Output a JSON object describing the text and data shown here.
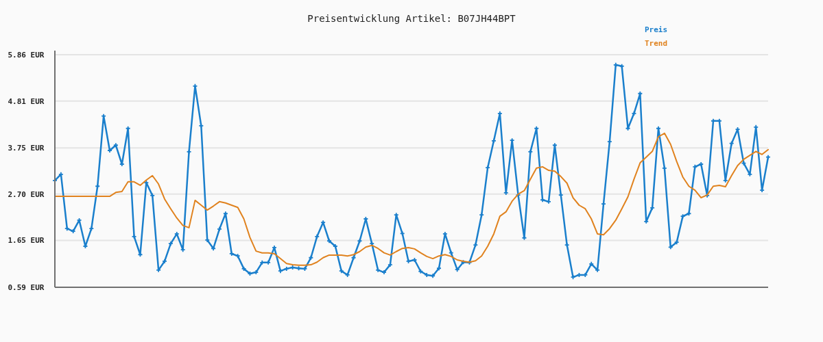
{
  "chart_data": {
    "type": "line",
    "title": "Preisentwicklung Artikel: B07JH44BPT",
    "categories": [
      null,
      null,
      null,
      null,
      null,
      null,
      null,
      null,
      null,
      null,
      null,
      null,
      null,
      null,
      null,
      null,
      null,
      null,
      null,
      null,
      null,
      null,
      null,
      null,
      null,
      null,
      null,
      null,
      null,
      null,
      null,
      null,
      null,
      null,
      null,
      null,
      null,
      null,
      null,
      null,
      null,
      null,
      null,
      null,
      null,
      null,
      null,
      null,
      null,
      null,
      null,
      null,
      null,
      null,
      null,
      null,
      null,
      null,
      null,
      null,
      null,
      null,
      null,
      null,
      null,
      null,
      null,
      null,
      null,
      null,
      null,
      null,
      null,
      null,
      null,
      null,
      null,
      null,
      null,
      null,
      null,
      null,
      null,
      null,
      null,
      null,
      null,
      null,
      null,
      null,
      null,
      null,
      null,
      null,
      null,
      null,
      null,
      null,
      null,
      null,
      null,
      null,
      null,
      null,
      null,
      null,
      null,
      null,
      null,
      null,
      null,
      null,
      null,
      null,
      null,
      null,
      null,
      null
    ],
    "series": [
      {
        "name": "Preis",
        "color": "#1a7fcc",
        "marker": "cross",
        "values": [
          3.01,
          3.15,
          1.92,
          1.86,
          2.11,
          1.52,
          1.92,
          2.88,
          4.47,
          3.69,
          3.81,
          3.38,
          4.19,
          1.74,
          1.33,
          2.96,
          2.67,
          0.98,
          1.18,
          1.58,
          1.8,
          1.44,
          3.66,
          5.15,
          4.25,
          1.66,
          1.47,
          1.91,
          2.26,
          1.35,
          1.3,
          1.01,
          0.9,
          0.93,
          1.15,
          1.15,
          1.49,
          0.96,
          1.01,
          1.04,
          1.02,
          1.01,
          1.26,
          1.74,
          2.06,
          1.64,
          1.52,
          0.96,
          0.87,
          1.26,
          1.64,
          2.14,
          1.58,
          0.98,
          0.93,
          1.1,
          2.23,
          1.81,
          1.18,
          1.21,
          0.95,
          0.87,
          0.85,
          1.02,
          1.8,
          1.37,
          0.99,
          1.16,
          1.15,
          1.55,
          2.23,
          3.3,
          3.91,
          4.53,
          2.73,
          3.92,
          2.68,
          1.71,
          3.66,
          4.19,
          2.57,
          2.53,
          3.81,
          2.68,
          1.55,
          0.82,
          0.87,
          0.87,
          1.12,
          0.98,
          2.48,
          3.89,
          5.63,
          5.6,
          4.19,
          4.53,
          4.98,
          2.08,
          2.39,
          4.19,
          3.29,
          1.5,
          1.61,
          2.2,
          2.26,
          3.32,
          3.38,
          2.67,
          4.36,
          4.36,
          3.01,
          3.85,
          4.17,
          3.4,
          3.15,
          4.22,
          2.79,
          3.54
        ]
      },
      {
        "name": "Trend",
        "color": "#e0821e",
        "marker": "none",
        "values": [
          2.65,
          2.65,
          2.65,
          2.65,
          2.65,
          2.65,
          2.65,
          2.65,
          2.65,
          2.65,
          2.74,
          2.76,
          2.98,
          2.98,
          2.9,
          3.02,
          3.12,
          2.93,
          2.59,
          2.37,
          2.16,
          1.99,
          1.94,
          2.56,
          2.45,
          2.34,
          2.43,
          2.53,
          2.5,
          2.45,
          2.4,
          2.14,
          1.72,
          1.41,
          1.37,
          1.37,
          1.35,
          1.24,
          1.13,
          1.1,
          1.09,
          1.09,
          1.1,
          1.16,
          1.26,
          1.32,
          1.32,
          1.32,
          1.3,
          1.33,
          1.4,
          1.5,
          1.54,
          1.47,
          1.37,
          1.32,
          1.4,
          1.47,
          1.49,
          1.46,
          1.37,
          1.29,
          1.24,
          1.3,
          1.33,
          1.29,
          1.21,
          1.18,
          1.16,
          1.19,
          1.3,
          1.52,
          1.8,
          2.2,
          2.3,
          2.54,
          2.7,
          2.78,
          3.04,
          3.29,
          3.32,
          3.24,
          3.22,
          3.1,
          2.95,
          2.62,
          2.45,
          2.37,
          2.14,
          1.8,
          1.78,
          1.92,
          2.11,
          2.37,
          2.64,
          3.04,
          3.41,
          3.54,
          3.67,
          4.0,
          4.08,
          3.83,
          3.44,
          3.09,
          2.88,
          2.79,
          2.62,
          2.68,
          2.88,
          2.9,
          2.87,
          3.12,
          3.35,
          3.49,
          3.58,
          3.67,
          3.6,
          3.71
        ]
      }
    ],
    "ylim": [
      0.59,
      5.86
    ],
    "yticks": [
      {
        "value": 0.59,
        "label": "0.59 EUR"
      },
      {
        "value": 1.65,
        "label": "1.65 EUR"
      },
      {
        "value": 2.7,
        "label": "2.70 EUR"
      },
      {
        "value": 3.75,
        "label": "3.75 EUR"
      },
      {
        "value": 4.81,
        "label": "4.81 EUR"
      },
      {
        "value": 5.86,
        "label": "5.86 EUR"
      }
    ],
    "grid": "y",
    "legend": "top right",
    "line_style": "solid"
  }
}
